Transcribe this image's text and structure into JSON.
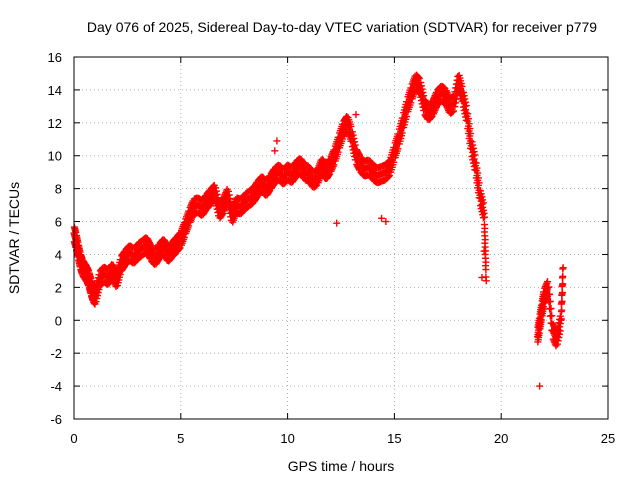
{
  "chart_data": {
    "type": "scatter",
    "title": "Day 076 of 2025, Sidereal Day-to-day VTEC variation (SDTVAR) for receiver p779",
    "xlabel": "GPS time / hours",
    "ylabel": "SDTVAR / TECUs",
    "xlim": [
      0,
      25
    ],
    "ylim": [
      -6,
      16
    ],
    "xticks": [
      0,
      5,
      10,
      15,
      20,
      25
    ],
    "yticks": [
      -6,
      -4,
      -2,
      0,
      2,
      4,
      6,
      8,
      10,
      12,
      14,
      16
    ],
    "grid": true,
    "marker": "+",
    "color": "#ff0000",
    "series": [
      {
        "name": "SDTVAR",
        "x": [
          0.0,
          0.1,
          0.2,
          0.3,
          0.4,
          0.5,
          0.6,
          0.7,
          0.8,
          0.9,
          1.0,
          1.2,
          1.4,
          1.6,
          1.8,
          2.0,
          2.2,
          2.4,
          2.6,
          2.8,
          3.0,
          3.2,
          3.4,
          3.6,
          3.8,
          4.0,
          4.2,
          4.4,
          4.6,
          4.8,
          5.0,
          5.2,
          5.4,
          5.6,
          5.8,
          6.0,
          6.2,
          6.4,
          6.6,
          6.8,
          7.0,
          7.2,
          7.4,
          7.6,
          7.8,
          8.0,
          8.2,
          8.4,
          8.6,
          8.8,
          9.0,
          9.2,
          9.4,
          9.6,
          9.8,
          10.0,
          10.2,
          10.4,
          10.6,
          10.8,
          11.0,
          11.2,
          11.4,
          11.6,
          11.8,
          12.0,
          12.2,
          12.4,
          12.6,
          12.8,
          13.0,
          13.2,
          13.4,
          13.6,
          13.8,
          14.0,
          14.2,
          14.4,
          14.6,
          14.8,
          15.0,
          15.2,
          15.4,
          15.6,
          15.8,
          16.0,
          16.2,
          16.4,
          16.6,
          16.8,
          17.0,
          17.2,
          17.4,
          17.6,
          17.8,
          18.0,
          18.2,
          18.4,
          18.6,
          18.8,
          19.0,
          19.2,
          19.3,
          21.7,
          21.8,
          21.9,
          22.0,
          22.2,
          22.4,
          22.6,
          22.8,
          22.9
        ],
        "y": [
          5.3,
          4.8,
          4.2,
          3.6,
          3.2,
          3.0,
          2.8,
          2.5,
          2.0,
          1.6,
          1.4,
          2.5,
          2.8,
          2.6,
          3.0,
          2.4,
          3.4,
          3.8,
          4.1,
          3.9,
          4.2,
          4.4,
          4.6,
          4.1,
          3.8,
          4.2,
          4.5,
          4.0,
          4.3,
          4.6,
          4.9,
          5.6,
          6.3,
          6.9,
          7.0,
          6.8,
          7.2,
          7.5,
          7.8,
          6.6,
          7.0,
          7.6,
          6.3,
          7.0,
          6.9,
          7.2,
          7.4,
          7.6,
          8.0,
          8.3,
          8.0,
          8.4,
          8.8,
          9.0,
          8.7,
          9.0,
          8.8,
          9.2,
          9.4,
          9.0,
          8.9,
          8.5,
          8.7,
          9.4,
          9.0,
          9.4,
          10.0,
          10.8,
          11.6,
          12.0,
          11.2,
          10.0,
          9.5,
          9.2,
          9.3,
          9.0,
          8.8,
          8.9,
          9.0,
          9.3,
          10.2,
          11.0,
          12.0,
          13.0,
          13.8,
          14.5,
          14.2,
          13.0,
          12.6,
          12.9,
          13.5,
          13.8,
          13.6,
          13.0,
          13.2,
          14.6,
          13.6,
          12.4,
          10.6,
          9.4,
          7.6,
          6.5,
          2.4,
          -1.0,
          -0.2,
          0.6,
          1.4,
          2.0,
          -0.6,
          -1.2,
          0.0,
          3.2
        ],
        "x_extra": [
          14.4,
          14.6,
          21.8,
          19.2,
          19.1,
          9.5,
          9.4,
          12.3,
          13.2
        ],
        "y_extra": [
          6.2,
          6.0,
          -4.0,
          4.2,
          2.6,
          10.9,
          10.3,
          5.9,
          12.5
        ]
      }
    ]
  }
}
